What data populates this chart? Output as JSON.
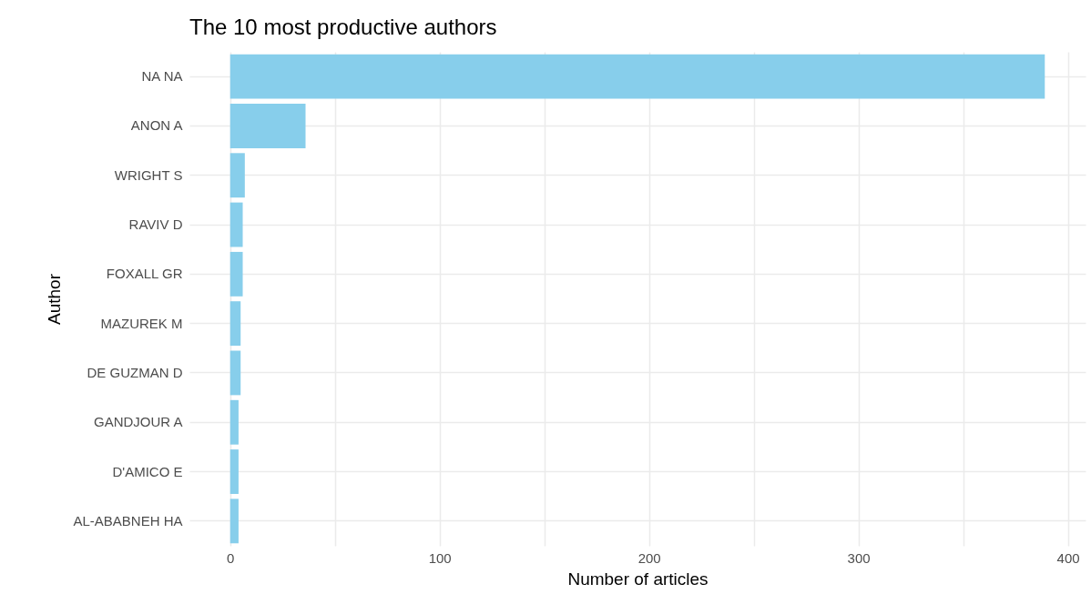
{
  "chart_data": {
    "type": "bar",
    "orientation": "horizontal",
    "title": "The 10 most productive authors",
    "xlabel": "Number of articles",
    "ylabel": "Author",
    "categories": [
      "NA NA",
      "ANON A",
      "WRIGHT S",
      "RAVIV D",
      "FOXALL GR",
      "MAZUREK M",
      "DE GUZMAN D",
      "GANDJOUR A",
      "D'AMICO E",
      "AL-ABABNEH HA"
    ],
    "values": [
      389,
      36,
      7,
      6,
      6,
      5,
      5,
      4,
      4,
      4
    ],
    "color": "#87ceeb",
    "xlim": [
      -19.45,
      408.45
    ],
    "xticks": [
      0,
      {
        "value": 50,
        "label": null
      },
      100,
      {
        "value": 150,
        "label": null
      },
      200,
      {
        "value": 250,
        "label": null
      },
      300,
      {
        "value": 350,
        "label": null
      },
      400
    ],
    "grid": true
  }
}
